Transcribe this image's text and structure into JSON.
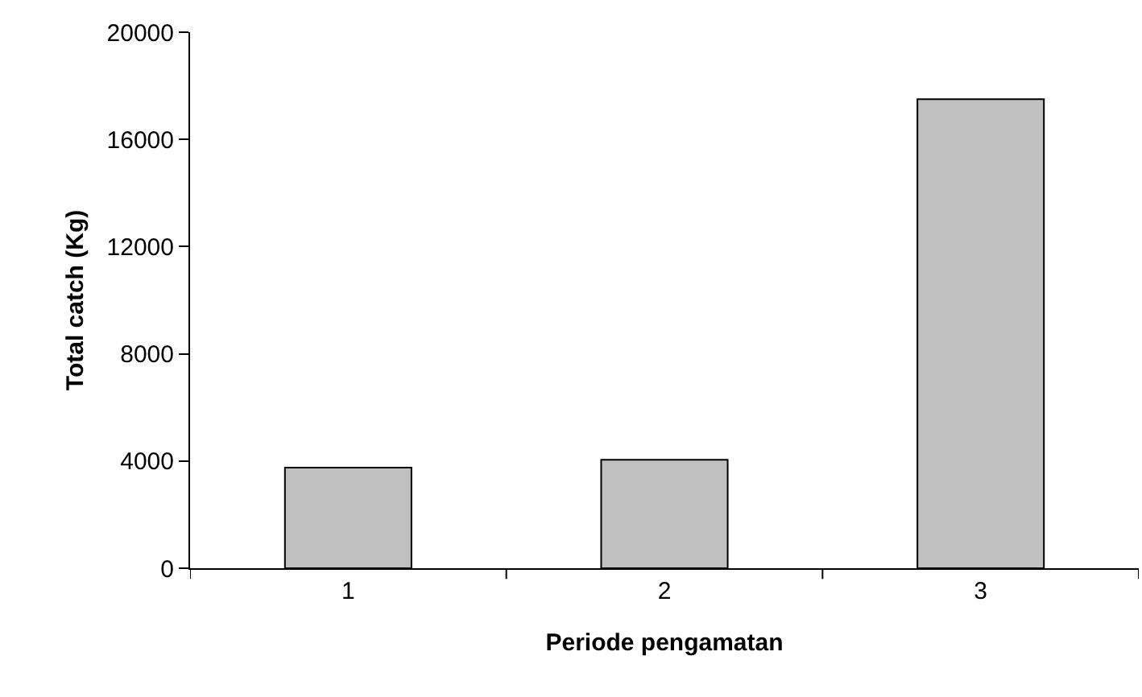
{
  "chart_data": {
    "type": "bar",
    "xlabel": "Periode pengamatan",
    "ylabel": "Total catch (Kg)",
    "categories": [
      "1",
      "2",
      "3"
    ],
    "values": [
      3750,
      4050,
      17500
    ],
    "color": "#c0c0c0",
    "ylim": [
      0,
      20000
    ],
    "yticks": [
      0,
      4000,
      8000,
      12000,
      16000,
      20000
    ]
  }
}
